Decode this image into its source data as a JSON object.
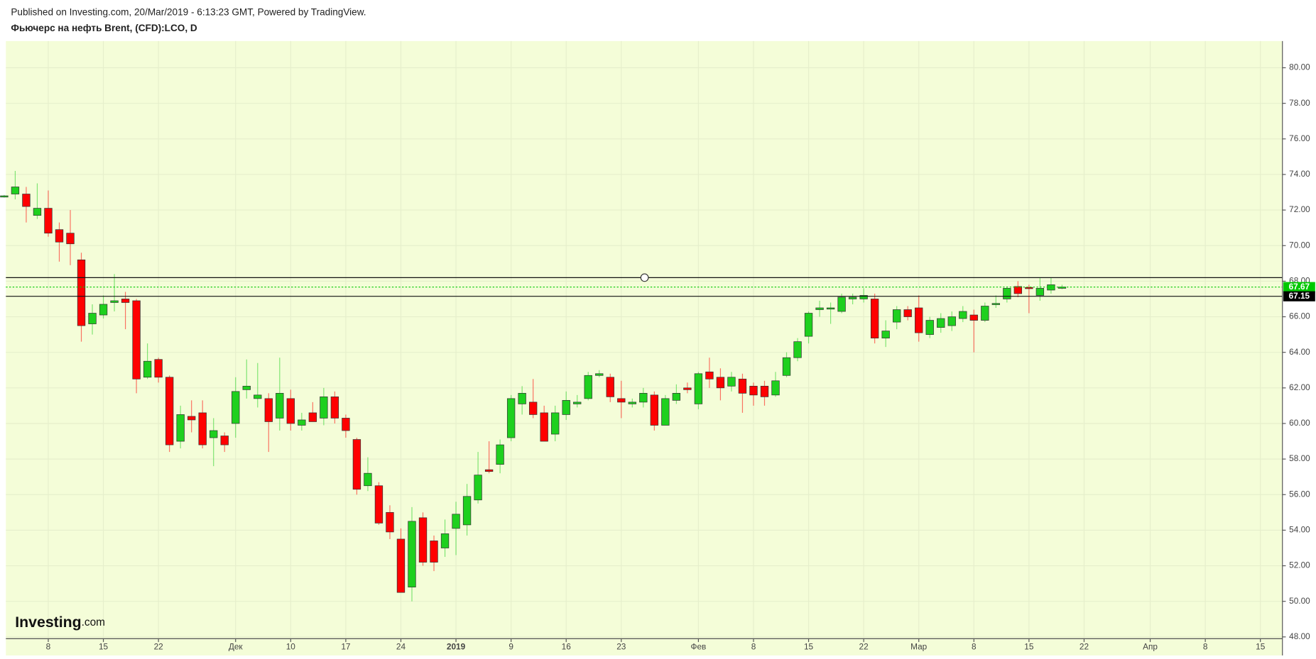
{
  "header": {
    "published": "Published on Investing.com, 20/Mar/2019 - 6:13:23 GMT, Powered by TradingView.",
    "instrument": "Фьючерс на нефть Brent, (CFD):LCO, D"
  },
  "watermark": {
    "brand": "Investing",
    "suffix": ".com"
  },
  "chart_data": {
    "type": "candlestick",
    "categories": [
      null,
      null,
      null,
      null,
      "8",
      null,
      null,
      null,
      null,
      "15",
      null,
      null,
      null,
      null,
      "22",
      null,
      null,
      null,
      null,
      null,
      null,
      "Дек",
      null,
      null,
      null,
      null,
      "10",
      null,
      null,
      null,
      null,
      "17",
      null,
      null,
      null,
      null,
      "24",
      null,
      null,
      null,
      null,
      "2019",
      null,
      null,
      null,
      null,
      "9",
      null,
      null,
      null,
      null,
      "16",
      null,
      null,
      null,
      null,
      "23",
      null,
      null,
      null,
      null,
      null,
      null,
      "Фев",
      null,
      null,
      null,
      null,
      "8",
      null,
      null,
      null,
      null,
      "15",
      null,
      null,
      null,
      null,
      "22",
      null,
      null,
      null,
      null,
      "Мар",
      null,
      null,
      null,
      null,
      "8",
      null,
      null,
      null,
      null,
      "15",
      null,
      null,
      null,
      null,
      "22",
      null,
      null,
      null,
      null,
      null,
      "Апр",
      null,
      null,
      null,
      null,
      "8",
      null,
      null,
      null,
      null,
      "15",
      null
    ],
    "open": [
      72.75,
      72.9,
      72.9,
      71.7,
      72.1,
      70.9,
      70.7,
      69.2,
      65.6,
      66.1,
      66.8,
      67.0,
      66.9,
      62.6,
      63.6,
      62.6,
      59.0,
      60.4,
      60.6,
      59.2,
      59.3,
      60.0,
      61.9,
      61.4,
      61.4,
      60.3,
      61.4,
      59.9,
      60.6,
      60.3,
      61.5,
      60.3,
      59.1,
      56.5,
      56.5,
      55.0,
      53.5,
      50.8,
      54.7,
      53.4,
      53.0,
      54.1,
      54.3,
      55.7,
      57.4,
      57.7,
      59.2,
      61.1,
      61.2,
      60.6,
      59.4,
      60.5,
      61.1,
      61.4,
      62.7,
      62.6,
      61.4,
      61.1,
      61.2,
      61.6,
      59.9,
      61.3,
      62.0,
      61.1,
      62.9,
      62.6,
      62.1,
      62.5,
      62.1,
      62.1,
      61.6,
      62.7,
      63.7,
      64.9,
      66.4,
      66.45,
      66.3,
      67.0,
      67.0,
      67.0,
      64.8,
      65.7,
      66.4,
      66.5,
      65.0,
      65.4,
      65.5,
      65.9,
      66.1,
      65.8,
      66.7,
      67.0,
      67.7,
      67.65,
      67.2,
      67.5,
      67.62,
      null,
      null,
      null,
      null,
      null,
      null,
      null,
      null,
      null,
      null,
      null,
      null,
      null,
      null,
      null,
      null,
      null,
      null,
      null
    ],
    "high": [
      72.85,
      74.2,
      73.3,
      73.5,
      73.1,
      71.3,
      72.0,
      69.6,
      66.7,
      67.2,
      68.4,
      67.4,
      67.0,
      64.5,
      63.7,
      62.7,
      61.0,
      61.3,
      61.3,
      60.3,
      59.5,
      62.6,
      63.6,
      63.4,
      61.7,
      63.7,
      61.9,
      60.6,
      61.2,
      62.0,
      61.8,
      60.5,
      59.2,
      58.1,
      56.7,
      55.4,
      54.1,
      55.3,
      55.0,
      53.7,
      54.6,
      55.6,
      56.6,
      58.4,
      59.0,
      59.1,
      61.6,
      62.1,
      62.5,
      61.0,
      61.0,
      61.8,
      61.6,
      62.9,
      63.0,
      62.8,
      62.4,
      61.4,
      62.0,
      61.8,
      61.6,
      62.2,
      62.3,
      62.9,
      63.7,
      63.1,
      62.9,
      62.8,
      62.3,
      62.4,
      62.9,
      64.0,
      64.8,
      66.3,
      66.9,
      66.8,
      67.3,
      67.3,
      67.6,
      67.3,
      65.8,
      66.6,
      66.6,
      67.2,
      66.0,
      66.2,
      66.3,
      66.6,
      66.4,
      66.8,
      67.2,
      67.7,
      68.0,
      67.8,
      68.2,
      68.2,
      67.8,
      null,
      null,
      null,
      null,
      null,
      null,
      null,
      null,
      null,
      null,
      null,
      null,
      null,
      null,
      null,
      null,
      null,
      null,
      null
    ],
    "low": [
      72.7,
      72.6,
      71.3,
      71.5,
      70.5,
      69.1,
      68.9,
      64.6,
      65.0,
      65.9,
      66.3,
      65.3,
      61.7,
      62.5,
      62.3,
      58.4,
      58.6,
      59.5,
      58.6,
      57.6,
      58.4,
      59.2,
      61.4,
      60.9,
      58.4,
      59.6,
      59.6,
      59.6,
      60.1,
      59.9,
      60.0,
      59.2,
      56.0,
      56.2,
      54.3,
      53.5,
      50.5,
      50.0,
      52.0,
      51.7,
      52.5,
      52.6,
      53.7,
      55.5,
      57.2,
      57.2,
      59.0,
      60.5,
      60.3,
      59.0,
      59.0,
      60.2,
      60.9,
      61.3,
      62.6,
      61.2,
      60.3,
      60.9,
      60.9,
      59.6,
      59.9,
      61.1,
      61.7,
      60.8,
      62.0,
      61.3,
      61.8,
      60.6,
      61.0,
      61.0,
      61.5,
      62.6,
      63.5,
      64.5,
      66.0,
      65.6,
      66.2,
      66.7,
      66.8,
      64.5,
      64.3,
      65.3,
      65.8,
      64.6,
      64.8,
      65.1,
      65.2,
      65.7,
      64.0,
      65.7,
      66.5,
      66.8,
      67.1,
      66.2,
      66.9,
      67.3,
      67.55,
      null,
      null,
      null,
      null,
      null,
      null,
      null,
      null,
      null,
      null,
      null,
      null,
      null,
      null,
      null,
      null,
      null,
      null,
      null
    ],
    "close": [
      72.8,
      73.3,
      72.2,
      72.1,
      70.7,
      70.2,
      70.1,
      65.5,
      66.2,
      66.7,
      66.9,
      66.8,
      62.5,
      63.5,
      62.6,
      58.8,
      60.5,
      60.2,
      58.8,
      59.6,
      58.8,
      61.8,
      62.1,
      61.6,
      60.1,
      61.7,
      60.0,
      60.2,
      60.1,
      61.5,
      60.3,
      59.6,
      56.3,
      57.2,
      54.4,
      53.9,
      50.5,
      54.5,
      52.2,
      52.2,
      53.8,
      54.9,
      55.9,
      57.1,
      57.3,
      58.8,
      61.4,
      61.7,
      60.5,
      59.0,
      60.6,
      61.3,
      61.2,
      62.7,
      62.8,
      61.5,
      61.2,
      61.2,
      61.7,
      59.9,
      61.4,
      61.7,
      61.9,
      62.8,
      62.5,
      62.0,
      62.6,
      61.7,
      61.6,
      61.5,
      62.4,
      63.7,
      64.6,
      66.2,
      66.5,
      66.5,
      67.1,
      67.1,
      67.2,
      64.8,
      65.2,
      66.4,
      66.0,
      65.1,
      65.8,
      65.9,
      66.0,
      66.3,
      65.8,
      66.6,
      66.75,
      67.6,
      67.3,
      67.6,
      67.6,
      67.8,
      67.67,
      null,
      null,
      null,
      null,
      null,
      null,
      null,
      null,
      null,
      null,
      null,
      null,
      null,
      null,
      null,
      null,
      null,
      null,
      null
    ],
    "up_color": "#1ed01e",
    "down_color": "#ff0000",
    "ylim": [
      47.9,
      81.5
    ],
    "yticks": [
      {
        "value": 48,
        "label": "48.00"
      },
      {
        "value": 50,
        "label": "50.00"
      },
      {
        "value": 52,
        "label": "52.00"
      },
      {
        "value": 54,
        "label": "54.00"
      },
      {
        "value": 56,
        "label": "56.00"
      },
      {
        "value": 58,
        "label": "58.00"
      },
      {
        "value": 60,
        "label": "60.00"
      },
      {
        "value": 62,
        "label": "62.00"
      },
      {
        "value": 64,
        "label": "64.00"
      },
      {
        "value": 66,
        "label": "66.00"
      },
      {
        "value": 68,
        "label": "68.00"
      },
      {
        "value": 70,
        "label": "70.00"
      },
      {
        "value": 72,
        "label": "72.00"
      },
      {
        "value": 74,
        "label": "74.00"
      },
      {
        "value": 76,
        "label": "76.00"
      },
      {
        "value": 78,
        "label": "78.00"
      },
      {
        "value": 80,
        "label": "80.00"
      }
    ],
    "axis_side": "right",
    "grid": true,
    "hlines": [
      68.2,
      67.15
    ],
    "level_label": 67.15,
    "last_price": 67.67,
    "last_price_color": "#00c800"
  }
}
